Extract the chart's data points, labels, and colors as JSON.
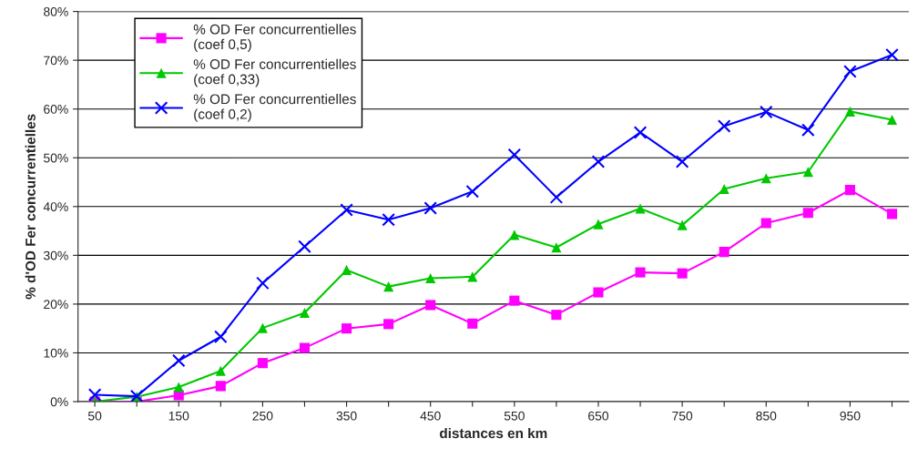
{
  "chart_data": {
    "type": "line",
    "xlabel": "distances en km",
    "ylabel": "% d'OD Fer concurrentielles",
    "categories": [
      "50",
      null,
      "150",
      null,
      "250",
      null,
      "350",
      null,
      "450",
      null,
      "550",
      null,
      "650",
      null,
      "750",
      null,
      "850",
      null,
      "950",
      null
    ],
    "series": [
      {
        "name": "% OD Fer concurrentielles\n(coef 0,5)",
        "color": "#ff00ff",
        "marker": "square",
        "values": [
          0,
          0,
          1.3,
          3.2,
          7.9,
          11,
          15,
          15.9,
          19.8,
          16,
          20.7,
          17.8,
          22.4,
          26.5,
          26.3,
          30.7,
          36.6,
          38.7,
          43.4,
          38.5
        ]
      },
      {
        "name": "% OD Fer concurrentielles\n(coef 0,33)",
        "color": "#00c800",
        "marker": "triangle",
        "values": [
          0,
          1.0,
          3.0,
          6.3,
          15.1,
          18.2,
          27,
          23.6,
          25.3,
          25.6,
          34.2,
          31.6,
          36.4,
          39.6,
          36.2,
          43.6,
          45.8,
          47.1,
          59.5,
          57.8
        ]
      },
      {
        "name": "% OD Fer concurrentielles\n(coef 0,2)",
        "color": "#0000ff",
        "marker": "cross",
        "values": [
          1.4,
          1.1,
          8.4,
          13.3,
          24.3,
          31.8,
          39.3,
          37.3,
          39.7,
          43.1,
          50.6,
          41.9,
          49.2,
          55.2,
          49.2,
          56.5,
          59.4,
          55.7,
          67.7,
          71.1
        ]
      }
    ],
    "ylim": [
      0,
      80
    ],
    "yticks": [
      {
        "value": 0,
        "label": "0%"
      },
      {
        "value": 10,
        "label": "10%"
      },
      {
        "value": 20,
        "label": "20%"
      },
      {
        "value": 30,
        "label": "30%"
      },
      {
        "value": 40,
        "label": "40%"
      },
      {
        "value": 50,
        "label": "50%"
      },
      {
        "value": 60,
        "label": "60%"
      },
      {
        "value": 70,
        "label": "70%"
      },
      {
        "value": 80,
        "label": "80%"
      }
    ],
    "grid": "y",
    "legend": "top left",
    "line_style": "solid"
  }
}
